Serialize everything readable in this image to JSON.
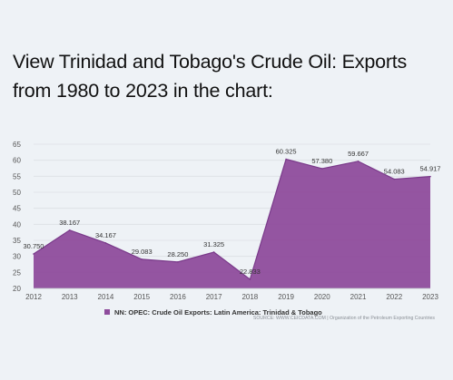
{
  "title": "View Trinidad and Tobago's Crude Oil: Exports from 1980 to 2023 in the chart:",
  "legend_label": "NN: OPEC: Crude Oil Exports: Latin America: Trinidad & Tobago",
  "source": "SOURCE: WWW.CEICDATA.COM | Organization of the Petroleum Exporting Countries",
  "colors": {
    "series": "#8e4c9c",
    "series_stroke": "#7a3a8a",
    "grid": "#dcdfe4",
    "tick": "#555555"
  },
  "chart_data": {
    "type": "area",
    "x": [
      "2012",
      "2013",
      "2014",
      "2015",
      "2016",
      "2017",
      "2018",
      "2019",
      "2020",
      "2021",
      "2022",
      "2023"
    ],
    "series": [
      {
        "name": "NN: OPEC: Crude Oil Exports: Latin America: Trinidad & Tobago",
        "values": [
          30.75,
          38.167,
          34.167,
          29.083,
          28.25,
          31.325,
          22.833,
          60.325,
          57.38,
          59.667,
          54.083,
          54.917
        ],
        "labels": [
          "30.750",
          "38.167",
          "34.167",
          "29.083",
          "28.250",
          "31.325",
          "22.833",
          "60.325",
          "57.380",
          "59.667",
          "54.083",
          "54.917"
        ]
      }
    ],
    "yticks": [
      20,
      25,
      30,
      35,
      40,
      45,
      50,
      55,
      60,
      65
    ],
    "ylim": [
      20,
      65
    ],
    "xlabel": "",
    "ylabel": "",
    "grid": true,
    "legend": "bottom-center"
  }
}
